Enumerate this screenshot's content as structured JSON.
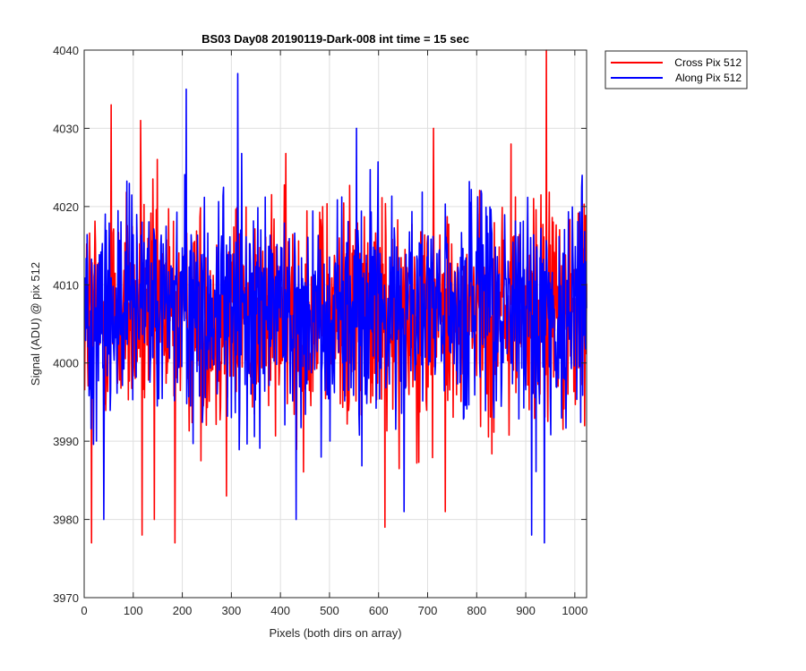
{
  "chart_data": {
    "type": "line",
    "title": "BS03 Day08 20190119-Dark-008 int time = 15 sec",
    "xlabel": "Pixels (both dirs on array)",
    "ylabel": "Signal (ADU) @ pix 512",
    "xlim": [
      0,
      1024
    ],
    "ylim": [
      3970,
      4040
    ],
    "xticks": [
      0,
      100,
      200,
      300,
      400,
      500,
      600,
      700,
      800,
      900,
      1000
    ],
    "yticks": [
      3970,
      3980,
      3990,
      4000,
      4010,
      4020,
      4030,
      4040
    ],
    "grid": true,
    "legend_position": "outside-top-right",
    "x_step": 1,
    "series": [
      {
        "name": "Cross Pix 512",
        "color": "#ff0000",
        "baseline": 4006.3,
        "peaks": [
          {
            "x": 15,
            "y": 3977
          },
          {
            "x": 55,
            "y": 4033
          },
          {
            "x": 115,
            "y": 4031
          },
          {
            "x": 118,
            "y": 3978
          },
          {
            "x": 143,
            "y": 3980
          },
          {
            "x": 185,
            "y": 3977
          },
          {
            "x": 290,
            "y": 3983
          },
          {
            "x": 613,
            "y": 3979
          },
          {
            "x": 712,
            "y": 4030
          },
          {
            "x": 736,
            "y": 3981
          },
          {
            "x": 870,
            "y": 4028
          },
          {
            "x": 942,
            "y": 4040
          }
        ]
      },
      {
        "name": "Along Pix 512",
        "color": "#0000ff",
        "baseline": 4006.7,
        "peaks": [
          {
            "x": 40,
            "y": 3980
          },
          {
            "x": 208,
            "y": 4035
          },
          {
            "x": 313,
            "y": 4037
          },
          {
            "x": 432,
            "y": 3980
          },
          {
            "x": 555,
            "y": 4030
          },
          {
            "x": 652,
            "y": 3981
          },
          {
            "x": 912,
            "y": 3978
          },
          {
            "x": 938,
            "y": 3977
          },
          {
            "x": 1015,
            "y": 4024
          }
        ]
      }
    ]
  }
}
